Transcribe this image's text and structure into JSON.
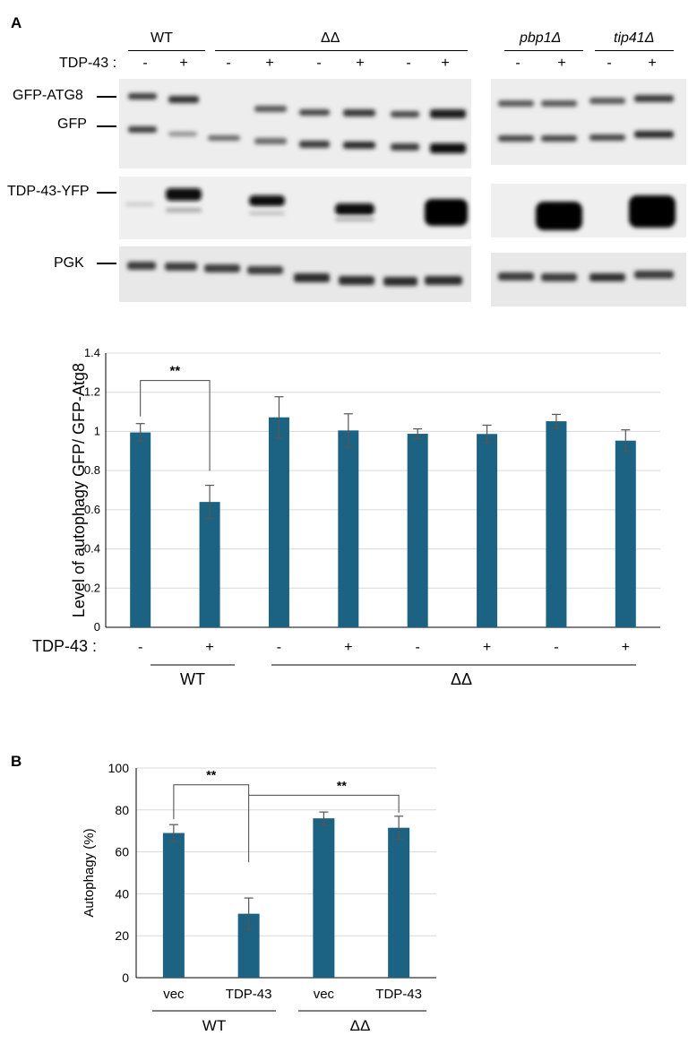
{
  "panel_a": {
    "label": "A",
    "groups": {
      "wt": "WT",
      "dd": "ΔΔ",
      "pbp1": "pbp1Δ",
      "tip41": "tip41Δ"
    },
    "tdp43_prefix": "TDP-43 :",
    "lane_signs_left": [
      "-",
      "+",
      "-",
      "+",
      "-",
      "+",
      "-",
      "+"
    ],
    "lane_signs_right": [
      "-",
      "+",
      "-",
      "+"
    ],
    "blot_labels": {
      "gfp_atg8": "GFP-ATG8",
      "gfp": "GFP",
      "tdp43_yfp": "TDP-43-YFP",
      "pgk": "PGK"
    }
  },
  "chart_a": {
    "type": "bar",
    "ylabel": "Level of autophagy GFP/ GFP-Atg8",
    "ylim": [
      0,
      1.4
    ],
    "yticks": [
      "0",
      "0.2",
      "0.4",
      "0.6",
      "0.8",
      "1",
      "1.2",
      "1.4"
    ],
    "values": [
      0.995,
      0.64,
      1.072,
      1.005,
      0.988,
      0.987,
      1.052,
      0.953
    ],
    "errors": [
      0.045,
      0.085,
      0.105,
      0.085,
      0.025,
      0.045,
      0.035,
      0.055
    ],
    "x_prefix": "TDP-43 :",
    "signs": [
      "-",
      "+",
      "-",
      "+",
      "-",
      "+",
      "-",
      "+"
    ],
    "group_labels": [
      "WT",
      "ΔΔ"
    ],
    "sig": "**"
  },
  "panel_b_label": "B",
  "chart_b": {
    "type": "bar",
    "ylabel": "Autophagy (%)",
    "ylim": [
      0,
      100
    ],
    "yticks": [
      "0",
      "20",
      "40",
      "60",
      "80",
      "100"
    ],
    "categories": [
      "vec",
      "TDP-43",
      "vec",
      "TDP-43"
    ],
    "values": [
      69,
      30.5,
      76,
      71.5
    ],
    "errors": [
      4,
      7.5,
      3,
      5.5
    ],
    "group_labels": [
      "WT",
      "ΔΔ"
    ],
    "sig": [
      "**",
      "**"
    ]
  }
}
